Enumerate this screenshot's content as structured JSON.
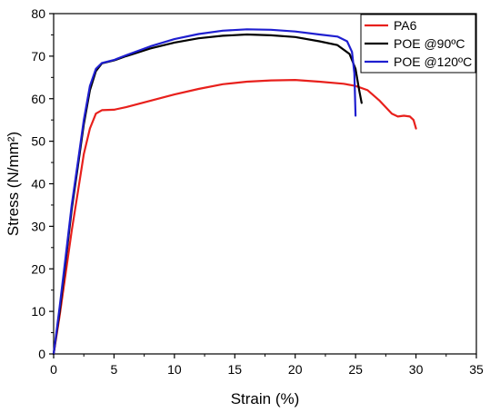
{
  "chart_data": {
    "type": "line",
    "title": "",
    "xlabel": "Strain (%)",
    "ylabel": "Stress (N/mm²)",
    "xlim": [
      0,
      35
    ],
    "ylim": [
      0,
      80
    ],
    "xticks": [
      0,
      5,
      10,
      15,
      20,
      25,
      30,
      35
    ],
    "yticks": [
      0,
      10,
      20,
      30,
      40,
      50,
      60,
      70,
      80
    ],
    "x_tick_labels": [
      "0",
      "5",
      "10",
      "15",
      "20",
      "25",
      "30",
      "35"
    ],
    "y_tick_labels": [
      "0",
      "10",
      "20",
      "30",
      "40",
      "50",
      "60",
      "70",
      "80"
    ],
    "grid": false,
    "legend_position": "top-right",
    "series": [
      {
        "name": "PA6",
        "color": "#e8201c",
        "points": [
          [
            0,
            0
          ],
          [
            0.5,
            9
          ],
          [
            1,
            19
          ],
          [
            1.5,
            29
          ],
          [
            2,
            38
          ],
          [
            2.5,
            47
          ],
          [
            3,
            53
          ],
          [
            3.5,
            56.5
          ],
          [
            4,
            57.3
          ],
          [
            5,
            57.4
          ],
          [
            6,
            58
          ],
          [
            8,
            59.5
          ],
          [
            10,
            61
          ],
          [
            12,
            62.3
          ],
          [
            14,
            63.4
          ],
          [
            16,
            64
          ],
          [
            18,
            64.3
          ],
          [
            20,
            64.4
          ],
          [
            22,
            64
          ],
          [
            24,
            63.5
          ],
          [
            25,
            63
          ],
          [
            26,
            62
          ],
          [
            27,
            59.5
          ],
          [
            28,
            56.5
          ],
          [
            28.5,
            55.8
          ],
          [
            29,
            56
          ],
          [
            29.5,
            55.8
          ],
          [
            29.8,
            55
          ],
          [
            30,
            53
          ]
        ]
      },
      {
        "name": "POE @90ºC",
        "color": "#000000",
        "points": [
          [
            0,
            0
          ],
          [
            0.5,
            10
          ],
          [
            1,
            22
          ],
          [
            1.5,
            34
          ],
          [
            2,
            44
          ],
          [
            2.5,
            54
          ],
          [
            3,
            62
          ],
          [
            3.5,
            66.5
          ],
          [
            4,
            68.3
          ],
          [
            5,
            69
          ],
          [
            6,
            70
          ],
          [
            8,
            71.8
          ],
          [
            10,
            73.2
          ],
          [
            12,
            74.2
          ],
          [
            14,
            74.8
          ],
          [
            16,
            75.1
          ],
          [
            18,
            74.9
          ],
          [
            20,
            74.5
          ],
          [
            22,
            73.5
          ],
          [
            23.5,
            72.6
          ],
          [
            24.5,
            70.5
          ],
          [
            25,
            67
          ],
          [
            25.3,
            62
          ],
          [
            25.5,
            59
          ]
        ]
      },
      {
        "name": "POE @120ºC",
        "color": "#1f1fd0",
        "points": [
          [
            0,
            0
          ],
          [
            0.5,
            11
          ],
          [
            1,
            23
          ],
          [
            1.5,
            35
          ],
          [
            2,
            45
          ],
          [
            2.5,
            55
          ],
          [
            3,
            63
          ],
          [
            3.5,
            67
          ],
          [
            4,
            68.4
          ],
          [
            5,
            69.1
          ],
          [
            6,
            70.2
          ],
          [
            8,
            72.3
          ],
          [
            10,
            74
          ],
          [
            12,
            75.2
          ],
          [
            14,
            76
          ],
          [
            16,
            76.3
          ],
          [
            18,
            76.2
          ],
          [
            20,
            75.8
          ],
          [
            22,
            75.1
          ],
          [
            23.5,
            74.6
          ],
          [
            24.3,
            73.5
          ],
          [
            24.7,
            71
          ],
          [
            24.9,
            66
          ],
          [
            25,
            56
          ]
        ]
      }
    ]
  }
}
